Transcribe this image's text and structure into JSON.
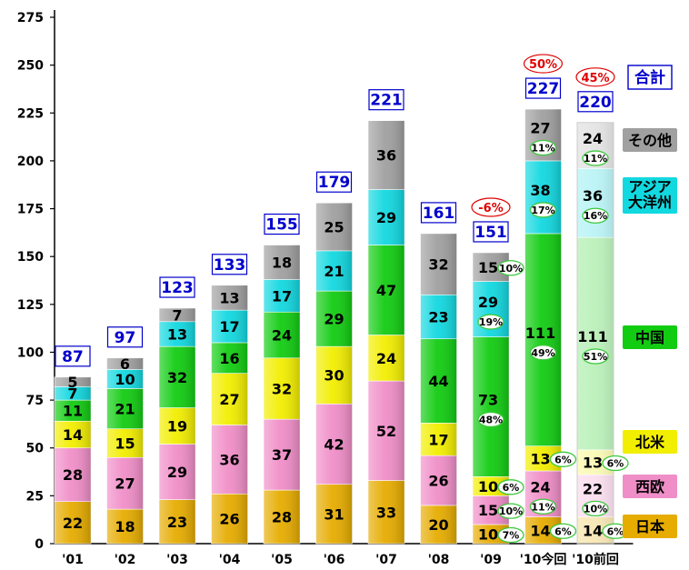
{
  "colors": {
    "japan": "#e6ac00",
    "western_europe": "#f08ec8",
    "north_america": "#f2ee00",
    "china": "#12cc12",
    "asia_oceania": "#12d8e0",
    "other": "#a0a0a0",
    "total_text": "#0000cc",
    "growth_text": "#e00000",
    "pct_ring": "#3cc83c"
  },
  "legend": {
    "total": "合計",
    "items": [
      {
        "key": "other",
        "label": "その他"
      },
      {
        "key": "asia_oceania",
        "label": "アジア\n大洋州"
      },
      {
        "key": "china",
        "label": "中国"
      },
      {
        "key": "north_america",
        "label": "北米"
      },
      {
        "key": "western_europe",
        "label": "西欧"
      },
      {
        "key": "japan",
        "label": "日本"
      }
    ]
  },
  "chart_data": {
    "type": "bar",
    "stacked": true,
    "categories": [
      "'01",
      "'02",
      "'03",
      "'04",
      "'05",
      "'06",
      "'07",
      "'08",
      "'09",
      "'10今回",
      "'10前回"
    ],
    "ylim": [
      0,
      275
    ],
    "yticks": [
      0,
      25,
      50,
      75,
      100,
      125,
      150,
      175,
      200,
      225,
      250,
      275
    ],
    "grid": false,
    "legend_position": "right",
    "series": [
      {
        "key": "japan",
        "name": "日本",
        "values": [
          22,
          18,
          23,
          26,
          28,
          31,
          33,
          20,
          10,
          14,
          14
        ]
      },
      {
        "key": "western_europe",
        "name": "西欧",
        "values": [
          28,
          27,
          29,
          36,
          37,
          42,
          52,
          26,
          15,
          24,
          22
        ]
      },
      {
        "key": "north_america",
        "name": "北米",
        "values": [
          14,
          15,
          19,
          27,
          32,
          30,
          24,
          17,
          10,
          13,
          13
        ]
      },
      {
        "key": "china",
        "name": "中国",
        "values": [
          11,
          21,
          32,
          16,
          24,
          29,
          47,
          44,
          73,
          111,
          111
        ]
      },
      {
        "key": "asia_oceania",
        "name": "アジア大洋州",
        "values": [
          7,
          10,
          13,
          17,
          17,
          21,
          29,
          23,
          29,
          38,
          36
        ]
      },
      {
        "key": "other",
        "name": "その他",
        "values": [
          5,
          6,
          7,
          13,
          18,
          25,
          36,
          32,
          15,
          27,
          24
        ]
      }
    ],
    "totals": [
      87,
      97,
      123,
      133,
      155,
      179,
      221,
      161,
      151,
      227,
      220
    ],
    "growth_labels": [
      {
        "category_index": 8,
        "text": "-6%"
      },
      {
        "category_index": 9,
        "text": "50%"
      },
      {
        "category_index": 10,
        "text": "45%"
      }
    ],
    "share_labels": [
      {
        "category_index": 8,
        "series": "japan",
        "text": "7%"
      },
      {
        "category_index": 8,
        "series": "western_europe",
        "text": "10%"
      },
      {
        "category_index": 8,
        "series": "north_america",
        "text": "6%"
      },
      {
        "category_index": 8,
        "series": "china",
        "text": "48%"
      },
      {
        "category_index": 8,
        "series": "asia_oceania",
        "text": "19%"
      },
      {
        "category_index": 8,
        "series": "other",
        "text": "10%"
      },
      {
        "category_index": 9,
        "series": "japan",
        "text": "6%"
      },
      {
        "category_index": 9,
        "series": "western_europe",
        "text": "11%"
      },
      {
        "category_index": 9,
        "series": "north_america",
        "text": "6%"
      },
      {
        "category_index": 9,
        "series": "china",
        "text": "49%"
      },
      {
        "category_index": 9,
        "series": "asia_oceania",
        "text": "17%"
      },
      {
        "category_index": 9,
        "series": "other",
        "text": "11%"
      },
      {
        "category_index": 10,
        "series": "japan",
        "text": "6%"
      },
      {
        "category_index": 10,
        "series": "western_europe",
        "text": "10%"
      },
      {
        "category_index": 10,
        "series": "north_america",
        "text": "6%"
      },
      {
        "category_index": 10,
        "series": "china",
        "text": "51%"
      },
      {
        "category_index": 10,
        "series": "asia_oceania",
        "text": "16%"
      },
      {
        "category_index": 10,
        "series": "other",
        "text": "11%"
      }
    ],
    "faded_categories": [
      10
    ]
  }
}
